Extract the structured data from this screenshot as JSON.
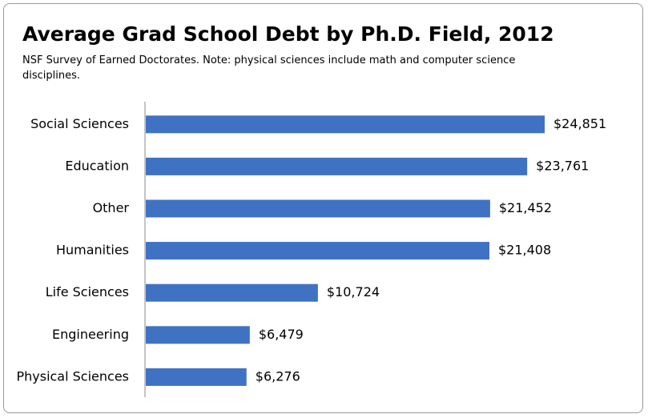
{
  "chart_data": {
    "type": "bar",
    "orientation": "horizontal",
    "title": "Average Grad School Debt by Ph.D. Field, 2012",
    "subtitle": "NSF Survey of Earned Doctorates. Note: physical sciences include math and computer science disciplines.",
    "categories": [
      "Social Sciences",
      "Education",
      "Other",
      "Humanities",
      "Life Sciences",
      "Engineering",
      "Physical Sciences"
    ],
    "values": [
      24851,
      23761,
      21452,
      21408,
      10724,
      6479,
      6276
    ],
    "value_labels": [
      "$24,851",
      "$23,761",
      "$21,452",
      "$21,408",
      "$10,724",
      "$6,479",
      "$6,276"
    ],
    "color": "#3f72c2"
  }
}
